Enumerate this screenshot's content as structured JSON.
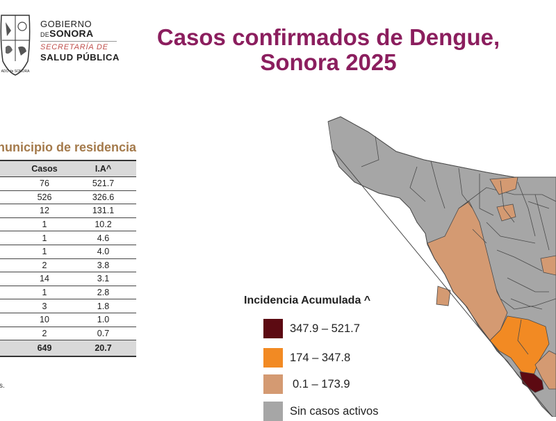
{
  "header": {
    "gov_line1": "GOBIERNO",
    "gov_de": "DE",
    "gov_line2": "SONORA",
    "gov_line3": "SECRETARÍA DE",
    "gov_line4": "SALUD PÚBLICA",
    "seal_text": "ADO de SONORA"
  },
  "title": {
    "line1": "Casos confirmados de Dengue,",
    "line2": "Sonora 2025"
  },
  "table": {
    "heading": "nunicipio de residencia",
    "headers": [
      "",
      "Casos",
      "I.A^"
    ],
    "rows": [
      {
        "casos": "76",
        "ia": "521.7"
      },
      {
        "casos": "526",
        "ia": "326.6"
      },
      {
        "casos": "12",
        "ia": "131.1"
      },
      {
        "casos": "1",
        "ia": "10.2"
      },
      {
        "casos": "1",
        "ia": "4.6"
      },
      {
        "casos": "1",
        "ia": "4.0"
      },
      {
        "casos": "2",
        "ia": "3.8"
      },
      {
        "casos": "14",
        "ia": "3.1"
      },
      {
        "casos": "1",
        "ia": "2.8"
      },
      {
        "casos": "3",
        "ia": "1.8"
      },
      {
        "casos": "10",
        "ia": "1.0"
      },
      {
        "casos": "2",
        "ia": "0.7"
      }
    ],
    "total": {
      "casos": "649",
      "ia": "20.7"
    },
    "footnote": "s."
  },
  "legend": {
    "title": "Incidencia Acumulada ^",
    "items": [
      {
        "label": "347.9 – 521.7",
        "color": "#5c0a12"
      },
      {
        "label": "174 – 347.8",
        "color": "#f28a23"
      },
      {
        "label": "0.1 – 173.9",
        "color": "#d49a72"
      },
      {
        "label": "Sin casos activos",
        "color": "#a6a6a6"
      }
    ]
  },
  "map_colors": {
    "none": "#a6a6a6",
    "low": "#d49a72",
    "mid": "#f28a23",
    "high": "#5c0a12",
    "border": "#4a4a4a"
  }
}
